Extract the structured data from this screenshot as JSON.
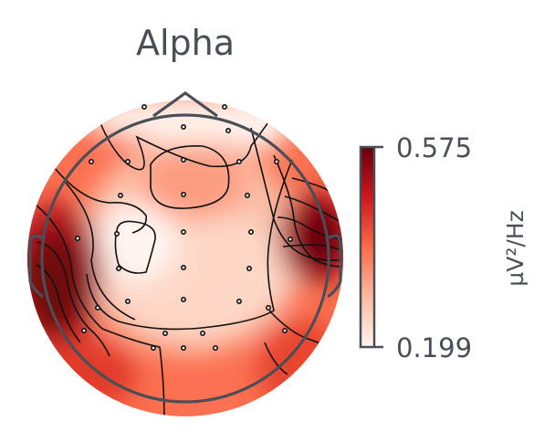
{
  "chart_data": {
    "type": "heatmap",
    "subtype": "eeg-scalp-topomap",
    "title": "Alpha",
    "colormap": "Reds",
    "colorbar": {
      "min": 0.199,
      "max": 0.575,
      "min_label": "0.199",
      "max_label": "0.575",
      "unit": "µV²/Hz"
    },
    "contour_lines": true,
    "sensor_markers": true,
    "sensor_count": 32,
    "high_regions": [
      "left-temporal",
      "right-temporal"
    ],
    "low_regions": [
      "left-central",
      "frontal-central"
    ],
    "colors": {
      "low": "#fff5f0",
      "mid": "#fb6a4a",
      "high": "#67000d",
      "outline": "#4a4f57"
    }
  }
}
